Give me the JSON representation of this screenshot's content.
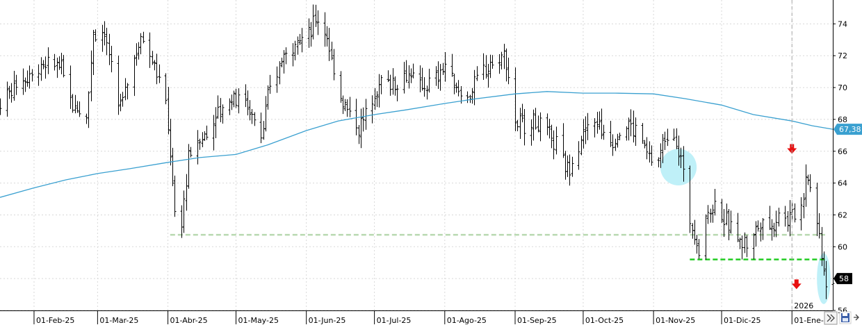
{
  "chart_data": {
    "type": "ohlc-bar",
    "title": "",
    "xlabel": "",
    "ylabel": "",
    "x_range": [
      "2025-01-17",
      "2026-01-19"
    ],
    "ylim": [
      56,
      75.5
    ],
    "y_ticks": [
      56,
      58,
      60,
      62,
      64,
      66,
      68,
      70,
      72,
      74
    ],
    "y_ticks_labeled": [
      "56",
      "58",
      "60",
      "62",
      "64",
      "66",
      "68",
      "70",
      "72",
      "74"
    ],
    "x_ticks": [
      {
        "date": "2025-02-01",
        "label": "01-Feb-25"
      },
      {
        "date": "2025-03-01",
        "label": "01-Mar-25"
      },
      {
        "date": "2025-04-01",
        "label": "01-Abr-25"
      },
      {
        "date": "2025-05-01",
        "label": "01-May-25"
      },
      {
        "date": "2025-06-01",
        "label": "01-Jun-25"
      },
      {
        "date": "2025-07-01",
        "label": "01-Jul-25"
      },
      {
        "date": "2025-08-01",
        "label": "01-Ago-25"
      },
      {
        "date": "2025-09-01",
        "label": "01-Sep-25"
      },
      {
        "date": "2025-10-01",
        "label": "01-Oct-25"
      },
      {
        "date": "2025-11-01",
        "label": "01-Nov-25"
      },
      {
        "date": "2025-12-01",
        "label": "01-Dic-25"
      },
      {
        "date": "2026-01-01",
        "label": "01-Ene-26"
      }
    ],
    "year_marker": {
      "date": "2026-01-01",
      "label": "2026"
    },
    "price_anchors": [
      [
        "2025-01-17",
        69.0
      ],
      [
        "2025-01-24",
        70.3
      ],
      [
        "2025-02-03",
        71.2
      ],
      [
        "2025-02-12",
        71.5
      ],
      [
        "2025-02-18",
        69.0
      ],
      [
        "2025-02-24",
        68.2
      ],
      [
        "2025-02-27",
        73.5
      ],
      [
        "2025-03-04",
        73.5
      ],
      [
        "2025-03-10",
        68.5
      ],
      [
        "2025-03-14",
        70.5
      ],
      [
        "2025-03-20",
        73.3
      ],
      [
        "2025-03-25",
        72.0
      ],
      [
        "2025-03-31",
        69.0
      ],
      [
        "2025-04-02",
        66.0
      ],
      [
        "2025-04-04",
        62.0
      ],
      [
        "2025-04-07",
        61.5
      ],
      [
        "2025-04-10",
        65.5
      ],
      [
        "2025-04-16",
        66.8
      ],
      [
        "2025-04-23",
        68.5
      ],
      [
        "2025-04-30",
        69.5
      ],
      [
        "2025-05-06",
        69.0
      ],
      [
        "2025-05-12",
        67.0
      ],
      [
        "2025-05-16",
        70.0
      ],
      [
        "2025-05-22",
        72.0
      ],
      [
        "2025-05-27",
        73.0
      ],
      [
        "2025-06-02",
        73.2
      ],
      [
        "2025-06-05",
        74.5
      ],
      [
        "2025-06-09",
        73.8
      ],
      [
        "2025-06-12",
        71.5
      ],
      [
        "2025-06-16",
        69.5
      ],
      [
        "2025-06-20",
        68.5
      ],
      [
        "2025-06-24",
        67.5
      ],
      [
        "2025-06-30",
        69.0
      ],
      [
        "2025-07-04",
        70.5
      ],
      [
        "2025-07-10",
        70.3
      ],
      [
        "2025-07-15",
        71.0
      ],
      [
        "2025-07-21",
        70.0
      ],
      [
        "2025-07-28",
        70.5
      ],
      [
        "2025-08-01",
        71.5
      ],
      [
        "2025-08-05",
        70.0
      ],
      [
        "2025-08-11",
        69.5
      ],
      [
        "2025-08-18",
        71.0
      ],
      [
        "2025-08-22",
        71.5
      ],
      [
        "2025-08-27",
        72.0
      ],
      [
        "2025-08-29",
        70.5
      ],
      [
        "2025-09-01",
        68.0
      ],
      [
        "2025-09-05",
        67.5
      ],
      [
        "2025-09-10",
        68.0
      ],
      [
        "2025-09-15",
        67.0
      ],
      [
        "2025-09-19",
        66.5
      ],
      [
        "2025-09-23",
        64.8
      ],
      [
        "2025-09-27",
        65.5
      ],
      [
        "2025-10-01",
        67.0
      ],
      [
        "2025-10-06",
        68.0
      ],
      [
        "2025-10-10",
        67.0
      ],
      [
        "2025-10-14",
        66.5
      ],
      [
        "2025-10-20",
        67.8
      ],
      [
        "2025-10-24",
        67.2
      ],
      [
        "2025-10-29",
        66.0
      ],
      [
        "2025-11-03",
        65.3
      ],
      [
        "2025-11-06",
        66.8
      ],
      [
        "2025-11-10",
        67.0
      ],
      [
        "2025-11-13",
        65.5
      ],
      [
        "2025-11-15",
        63.5
      ],
      [
        "2025-11-18",
        61.0
      ],
      [
        "2025-11-21",
        59.8
      ],
      [
        "2025-11-24",
        61.8
      ],
      [
        "2025-11-28",
        62.8
      ],
      [
        "2025-12-03",
        61.5
      ],
      [
        "2025-12-08",
        60.5
      ],
      [
        "2025-12-12",
        60.2
      ],
      [
        "2025-12-16",
        61.0
      ],
      [
        "2025-12-19",
        61.8
      ],
      [
        "2025-12-23",
        61.2
      ],
      [
        "2025-12-26",
        62.2
      ],
      [
        "2025-12-30",
        61.8
      ],
      [
        "2026-01-05",
        62.5
      ],
      [
        "2026-01-07",
        64.5
      ],
      [
        "2026-01-09",
        64.0
      ],
      [
        "2026-01-12",
        61.5
      ],
      [
        "2026-01-14",
        59.5
      ],
      [
        "2026-01-16",
        58.0
      ],
      [
        "2026-01-19",
        58.0
      ]
    ],
    "series": [
      {
        "kind": "moving-average",
        "color": "#3aa0d0",
        "points": [
          [
            "2025-01-17",
            63.1
          ],
          [
            "2025-02-01",
            63.7
          ],
          [
            "2025-02-15",
            64.2
          ],
          [
            "2025-03-01",
            64.6
          ],
          [
            "2025-03-15",
            64.9
          ],
          [
            "2025-04-01",
            65.3
          ],
          [
            "2025-04-15",
            65.6
          ],
          [
            "2025-05-01",
            65.8
          ],
          [
            "2025-05-15",
            66.4
          ],
          [
            "2025-06-01",
            67.3
          ],
          [
            "2025-06-15",
            67.9
          ],
          [
            "2025-07-01",
            68.3
          ],
          [
            "2025-07-15",
            68.6
          ],
          [
            "2025-08-01",
            69.0
          ],
          [
            "2025-08-15",
            69.3
          ],
          [
            "2025-09-01",
            69.6
          ],
          [
            "2025-09-15",
            69.75
          ],
          [
            "2025-10-01",
            69.65
          ],
          [
            "2025-10-15",
            69.65
          ],
          [
            "2025-11-01",
            69.6
          ],
          [
            "2025-11-15",
            69.3
          ],
          [
            "2025-12-01",
            68.9
          ],
          [
            "2025-12-15",
            68.3
          ],
          [
            "2026-01-01",
            67.9
          ],
          [
            "2026-01-10",
            67.6
          ],
          [
            "2026-01-19",
            67.38
          ]
        ]
      }
    ],
    "horizontal_lines": [
      {
        "y": 60.75,
        "from": "2025-04-02",
        "to": "2026-01-16",
        "color": "#b8d8b0",
        "style": "dashed"
      },
      {
        "y": 59.2,
        "from": "2025-11-17",
        "to": "2026-01-16",
        "color": "#22cc22",
        "style": "dashed"
      }
    ],
    "highlight_ellipses": [
      {
        "cx_date": "2025-11-12",
        "cy": 65.0,
        "rx_days": 8,
        "ry": 1.15,
        "color": "#bff0f8"
      },
      {
        "cx_date": "2026-01-15",
        "cy": 58.0,
        "rx_days": 3.5,
        "ry": 1.6,
        "color": "#bff0f8"
      }
    ],
    "arrows": [
      {
        "date": "2026-01-01",
        "y": 66.1,
        "direction": "down",
        "color": "#e81010"
      },
      {
        "date": "2026-01-03",
        "y": 57.6,
        "direction": "down",
        "color": "#e81010"
      }
    ],
    "price_labels": [
      {
        "value": 67.38,
        "text": "67,38",
        "color": "#3aa0d0"
      },
      {
        "value": 58,
        "text": "58",
        "color": "#000000"
      }
    ]
  }
}
